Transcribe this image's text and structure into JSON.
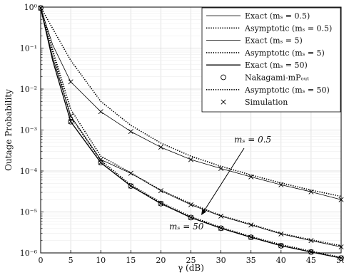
{
  "chart_data": {
    "type": "line",
    "xlabel": "γ (dB)",
    "ylabel": "Outage Probability",
    "xlim": [
      0,
      50
    ],
    "ylim": [
      1e-06,
      1
    ],
    "yscale": "log",
    "grid": true,
    "legend_position": "top-right",
    "x_ticks": [
      "0",
      "5",
      "10",
      "15",
      "20",
      "25",
      "30",
      "35",
      "40",
      "45",
      "50"
    ],
    "y_ticks": [
      "10⁰",
      "10⁻¹",
      "10⁻²",
      "10⁻³",
      "10⁻⁴",
      "10⁻⁵",
      "10⁻⁶"
    ],
    "legend": [
      "Exact (mₛ = 0.5)",
      "Asymptotic (mₛ = 0.5)",
      "Exact (mₛ = 5)",
      "Asymptotic (mₛ = 5)",
      "Exact (mₛ = 50)",
      "Nakagami-mPₒᵤₜ",
      "Asymptotic (mₛ = 50)",
      "Simulation"
    ],
    "annotations": [
      "mₛ = 0.5",
      "mₛ = 50"
    ],
    "series": [
      {
        "name": "Exact (mₛ = 0.5)",
        "style": "solid-thin",
        "color": "#000000",
        "x": [
          0,
          2,
          5,
          10,
          15,
          20,
          25,
          30,
          35,
          40,
          45,
          50
        ],
        "y": [
          0.95,
          0.12,
          0.015,
          0.0028,
          0.00092,
          0.00038,
          0.00019,
          0.000115,
          7.2e-05,
          4.6e-05,
          3.1e-05,
          2e-05
        ]
      },
      {
        "name": "Asymptotic (mₛ = 0.5)",
        "style": "dotted",
        "color": "#000000",
        "x": [
          0,
          2,
          5,
          10,
          15,
          20,
          25,
          30,
          35,
          40,
          45,
          50
        ],
        "y": [
          1.0,
          0.3,
          0.05,
          0.005,
          0.0013,
          0.00048,
          0.00023,
          0.00013,
          8e-05,
          5.1e-05,
          3.4e-05,
          2.4e-05
        ]
      },
      {
        "name": "Exact (mₛ = 5)",
        "style": "solid-thin",
        "color": "#000000",
        "x": [
          0,
          2,
          5,
          10,
          15,
          20,
          25,
          30,
          35,
          40,
          45,
          50
        ],
        "y": [
          0.95,
          0.06,
          0.0022,
          0.00019,
          8.8e-05,
          3.3e-05,
          1.5e-05,
          7.9e-06,
          4.8e-06,
          2.9e-06,
          2e-06,
          1.4e-06
        ]
      },
      {
        "name": "Asymptotic (mₛ = 5)",
        "style": "dotted",
        "color": "#000000",
        "x": [
          0,
          2,
          5,
          10,
          15,
          20,
          25,
          30,
          35,
          40,
          45,
          50
        ],
        "y": [
          1.0,
          0.09,
          0.0032,
          0.00023,
          9e-05,
          3.4e-05,
          1.6e-05,
          8.2e-06,
          5e-06,
          3e-06,
          2.1e-06,
          1.5e-06
        ]
      },
      {
        "name": "Exact (mₛ = 50)",
        "style": "solid",
        "color": "#000000",
        "x": [
          0,
          2,
          5,
          10,
          15,
          20,
          25,
          30,
          35,
          40,
          45,
          50
        ],
        "y": [
          0.95,
          0.05,
          0.0016,
          0.00016,
          4.3e-05,
          1.6e-05,
          7.3e-06,
          4e-06,
          2.4e-06,
          1.5e-06,
          1.05e-06,
          7.5e-07
        ]
      },
      {
        "name": "Asymptotic (mₛ = 50)",
        "style": "dotted",
        "color": "#000000",
        "x": [
          0,
          2,
          5,
          10,
          15,
          20,
          25,
          30,
          35,
          40,
          45,
          50
        ],
        "y": [
          1.0,
          0.08,
          0.0021,
          0.00018,
          4.6e-05,
          1.7e-05,
          7.7e-06,
          4.2e-06,
          2.5e-06,
          1.6e-06,
          1.1e-06,
          7.8e-07
        ]
      },
      {
        "name": "Nakagami-mPₒᵤₜ",
        "style": "circle",
        "color": "#000000",
        "x": [
          0,
          5,
          10,
          15,
          20,
          25,
          30,
          35,
          40,
          45,
          50
        ],
        "y": [
          0.95,
          0.0016,
          0.00016,
          4.3e-05,
          1.6e-05,
          7.3e-06,
          4e-06,
          2.4e-06,
          1.5e-06,
          1.05e-06,
          7.5e-07
        ]
      },
      {
        "name": "Simulation",
        "style": "x",
        "color": "#000000",
        "x": [
          0,
          5,
          10,
          15,
          20,
          25,
          30,
          35,
          40,
          45,
          50,
          0,
          5,
          10,
          15,
          20,
          25,
          30,
          35,
          40,
          45,
          50,
          0,
          5,
          10,
          15,
          20,
          25,
          30,
          35,
          40,
          45,
          50
        ],
        "y": [
          0.95,
          0.015,
          0.0028,
          0.00092,
          0.00038,
          0.00019,
          0.000115,
          7.2e-05,
          4.6e-05,
          3.1e-05,
          2e-05,
          0.95,
          0.0022,
          0.00019,
          8.8e-05,
          3.3e-05,
          1.5e-05,
          7.9e-06,
          4.8e-06,
          2.9e-06,
          2e-06,
          1.4e-06,
          0.95,
          0.0016,
          0.00016,
          4.3e-05,
          1.6e-05,
          7.3e-06,
          4e-06,
          2.4e-06,
          1.5e-06,
          1.05e-06,
          7.5e-07
        ]
      }
    ]
  }
}
